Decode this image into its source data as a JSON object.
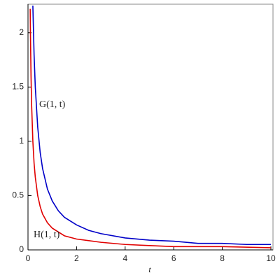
{
  "chart_data": {
    "type": "line",
    "x_label": "t",
    "xlim": [
      0,
      10
    ],
    "ylim": [
      0,
      2.25
    ],
    "xticks": [
      0,
      2,
      4,
      6,
      8,
      10
    ],
    "yticks": [
      0,
      0.5,
      1,
      1.5,
      2
    ],
    "series": [
      {
        "name": "G(1, t)",
        "color": "#0000c8",
        "x": [
          0.2,
          0.25,
          0.3,
          0.4,
          0.5,
          0.6,
          0.8,
          1,
          1.25,
          1.5,
          2,
          2.5,
          3,
          4,
          5,
          6,
          7,
          8,
          9,
          10
        ],
        "values": [
          2.25,
          1.8,
          1.5,
          1.13,
          0.9,
          0.75,
          0.56,
          0.45,
          0.36,
          0.3,
          0.23,
          0.18,
          0.15,
          0.11,
          0.09,
          0.08,
          0.06,
          0.06,
          0.05,
          0.05
        ]
      },
      {
        "name": "H(1, t)",
        "color": "#e00000",
        "x": [
          0.09,
          0.1,
          0.125,
          0.15,
          0.2,
          0.25,
          0.3,
          0.4,
          0.5,
          0.6,
          0.8,
          1,
          1.5,
          2,
          3,
          4,
          5,
          6,
          8,
          10
        ],
        "values": [
          2.22,
          2,
          1.6,
          1.33,
          1,
          0.8,
          0.67,
          0.5,
          0.4,
          0.33,
          0.25,
          0.2,
          0.13,
          0.1,
          0.07,
          0.05,
          0.04,
          0.03,
          0.03,
          0.02
        ]
      }
    ]
  }
}
